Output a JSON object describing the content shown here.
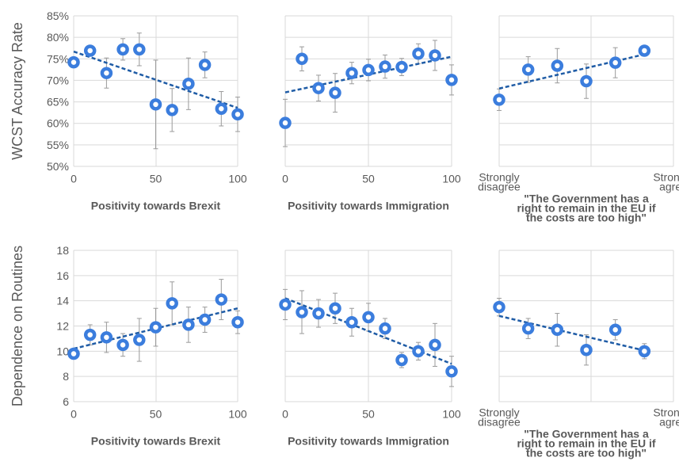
{
  "colors": {
    "marker": "#3b7ddd",
    "trend": "#1f5ca6",
    "error": "#9a9a9a",
    "grid": "#d9d9d9",
    "text": "#595959"
  },
  "row_labels": [
    "WCST Accuracy Rate",
    "Dependence on Routines"
  ],
  "chart_data": [
    {
      "type": "scatter",
      "row": 0,
      "col": 0,
      "xlabel": [
        "Positivity towards Brexit"
      ],
      "ylabel": "WCST Accuracy Rate",
      "xlim": [
        0,
        100
      ],
      "ylim": [
        0.5,
        0.85
      ],
      "yticks": [
        "50%",
        "55%",
        "60%",
        "65%",
        "70%",
        "75%",
        "80%",
        "85%"
      ],
      "xticks": [
        "0",
        "50",
        "100"
      ],
      "x": [
        0,
        10,
        20,
        30,
        40,
        50,
        60,
        70,
        80,
        90,
        100
      ],
      "y": [
        0.742,
        0.769,
        0.717,
        0.772,
        0.772,
        0.644,
        0.631,
        0.692,
        0.736,
        0.634,
        0.621
      ],
      "err": [
        0.0,
        0.012,
        0.035,
        0.025,
        0.038,
        0.103,
        0.05,
        0.06,
        0.03,
        0.04,
        0.04
      ],
      "trend": [
        0.767,
        0.636
      ]
    },
    {
      "type": "scatter",
      "row": 0,
      "col": 1,
      "xlabel": [
        "Positivity towards Immigration"
      ],
      "xlim": [
        0,
        100
      ],
      "ylim": [
        0.5,
        0.85
      ],
      "xticks": [
        "0",
        "50",
        "100"
      ],
      "x": [
        0,
        10,
        20,
        30,
        40,
        50,
        60,
        70,
        80,
        90,
        100
      ],
      "y": [
        0.601,
        0.75,
        0.682,
        0.671,
        0.717,
        0.724,
        0.732,
        0.731,
        0.762,
        0.758,
        0.701
      ],
      "err": [
        0.055,
        0.028,
        0.03,
        0.045,
        0.025,
        0.025,
        0.027,
        0.02,
        0.023,
        0.035,
        0.035
      ],
      "trend": [
        0.672,
        0.755
      ]
    },
    {
      "type": "scatter",
      "row": 0,
      "col": 2,
      "xlabel": [
        "\"The Government has a",
        "right to remain in the EU if",
        "the costs are too high\""
      ],
      "xlim": [
        1,
        7
      ],
      "ylim": [
        0.5,
        0.85
      ],
      "xticks": [
        {
          "v": 1,
          "lines": [
            "Strongly",
            "disagree"
          ]
        },
        {
          "v": 7,
          "lines": [
            "Strongly",
            "agree"
          ]
        }
      ],
      "x": [
        1,
        2,
        3,
        4,
        5,
        6
      ],
      "y": [
        0.655,
        0.725,
        0.734,
        0.698,
        0.741,
        0.769
      ],
      "err": [
        0.025,
        0.03,
        0.04,
        0.04,
        0.035,
        0.012
      ],
      "trend": [
        0.681,
        0.762
      ]
    },
    {
      "type": "scatter",
      "row": 1,
      "col": 0,
      "xlabel": [
        "Positivity towards Brexit"
      ],
      "ylabel": "Dependence on Routines",
      "xlim": [
        0,
        100
      ],
      "ylim": [
        6,
        18
      ],
      "yticks": [
        "6",
        "8",
        "10",
        "12",
        "14",
        "16",
        "18"
      ],
      "xticks": [
        "0",
        "50",
        "100"
      ],
      "x": [
        0,
        10,
        20,
        30,
        40,
        50,
        60,
        70,
        80,
        90,
        100
      ],
      "y": [
        9.8,
        11.3,
        11.1,
        10.5,
        10.9,
        11.9,
        13.8,
        12.1,
        12.5,
        14.1,
        12.3
      ],
      "err": [
        0.4,
        0.8,
        1.2,
        0.9,
        1.7,
        1.5,
        1.7,
        1.4,
        1.0,
        1.6,
        0.9
      ],
      "trend": [
        10.2,
        13.4
      ]
    },
    {
      "type": "scatter",
      "row": 1,
      "col": 1,
      "xlabel": [
        "Positivity towards Immigration"
      ],
      "xlim": [
        0,
        100
      ],
      "ylim": [
        6,
        18
      ],
      "xticks": [
        "0",
        "50",
        "100"
      ],
      "x": [
        0,
        10,
        20,
        30,
        40,
        50,
        60,
        70,
        80,
        90,
        100
      ],
      "y": [
        13.7,
        13.1,
        13.0,
        13.4,
        12.3,
        12.7,
        11.8,
        9.3,
        10.0,
        10.5,
        8.4
      ],
      "err": [
        1.2,
        1.7,
        1.1,
        1.2,
        1.1,
        1.1,
        0.8,
        0.6,
        0.7,
        1.7,
        1.2
      ],
      "trend": [
        14.2,
        9.0
      ]
    },
    {
      "type": "scatter",
      "row": 1,
      "col": 2,
      "xlabel": [
        "\"The Government has a",
        "right to remain in the EU if",
        "the costs are too high\""
      ],
      "xlim": [
        1,
        7
      ],
      "ylim": [
        6,
        18
      ],
      "xticks": [
        {
          "v": 1,
          "lines": [
            "Strongly",
            "disagree"
          ]
        },
        {
          "v": 7,
          "lines": [
            "Strongly",
            "agree"
          ]
        }
      ],
      "x": [
        1,
        2,
        3,
        4,
        5,
        6
      ],
      "y": [
        13.5,
        11.8,
        11.7,
        10.1,
        11.7,
        10.0
      ],
      "err": [
        0.7,
        0.8,
        1.3,
        1.2,
        0.8,
        0.6
      ],
      "trend": [
        12.8,
        10.0
      ]
    }
  ]
}
